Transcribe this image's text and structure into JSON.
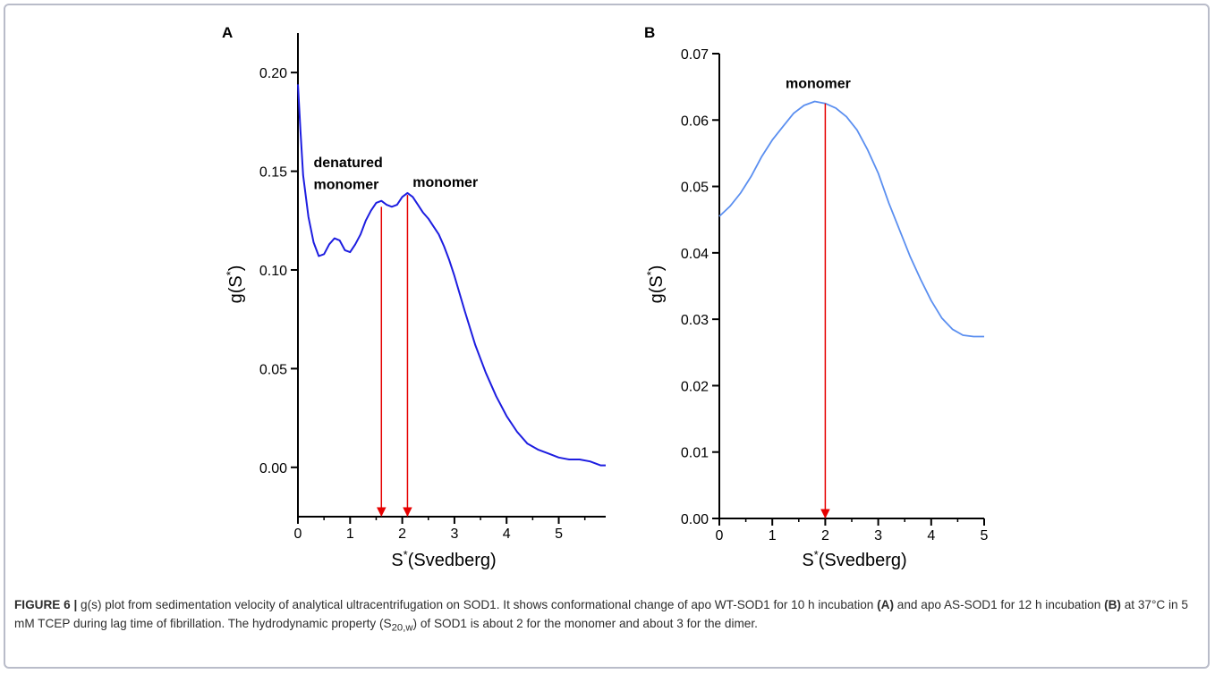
{
  "panels": {
    "a": {
      "label": "A",
      "ylabel_main": "g(S",
      "ylabel_sup": "*",
      "ylabel_close": ")",
      "xlabel_main": "S",
      "xlabel_sup": "*",
      "xlabel_rest": "(Svedberg)"
    },
    "b": {
      "label": "B",
      "ylabel_main": "g(S",
      "ylabel_sup": "*",
      "ylabel_close": ")",
      "xlabel_main": "S",
      "xlabel_sup": "*",
      "xlabel_rest": "(Svedberg)"
    }
  },
  "chart_data": [
    {
      "type": "line",
      "panel": "A",
      "xlabel": "S*(Svedberg)",
      "ylabel": "g(S*)",
      "xlim": [
        0,
        5.9
      ],
      "ylim": [
        -0.025,
        0.22
      ],
      "x_ticks": [
        "0",
        "1",
        "2",
        "3",
        "4",
        "5"
      ],
      "y_ticks": [
        "0.00",
        "0.05",
        "0.10",
        "0.15",
        "0.20"
      ],
      "line_color": "#1d1de0",
      "arrow_color": "#e60000",
      "series": [
        {
          "x": [
            0.0,
            0.05,
            0.1,
            0.2,
            0.3,
            0.4,
            0.5,
            0.6,
            0.7,
            0.8,
            0.9,
            1.0,
            1.1,
            1.2,
            1.3,
            1.4,
            1.5,
            1.6,
            1.7,
            1.8,
            1.9,
            2.0,
            2.1,
            2.2,
            2.3,
            2.4,
            2.5,
            2.6,
            2.7,
            2.8,
            2.9,
            3.0,
            3.2,
            3.4,
            3.6,
            3.8,
            4.0,
            4.2,
            4.4,
            4.6,
            4.8,
            5.0,
            5.2,
            5.4,
            5.6,
            5.8,
            5.9
          ],
          "y": [
            0.194,
            0.17,
            0.148,
            0.127,
            0.114,
            0.107,
            0.108,
            0.113,
            0.116,
            0.115,
            0.11,
            0.109,
            0.113,
            0.118,
            0.125,
            0.13,
            0.134,
            0.135,
            0.133,
            0.132,
            0.133,
            0.137,
            0.139,
            0.137,
            0.133,
            0.129,
            0.126,
            0.122,
            0.118,
            0.112,
            0.105,
            0.097,
            0.079,
            0.062,
            0.048,
            0.036,
            0.026,
            0.018,
            0.012,
            0.009,
            0.007,
            0.005,
            0.004,
            0.004,
            0.003,
            0.001,
            0.001
          ]
        }
      ],
      "annotations": [
        {
          "text": "denatured",
          "x": 0.3,
          "y": 0.152
        },
        {
          "text": "monomer",
          "x": 0.3,
          "y": 0.141
        },
        {
          "text": "monomer",
          "x": 2.2,
          "y": 0.142
        }
      ],
      "arrows": [
        {
          "x": 1.6,
          "y_from": 0.132,
          "y_to": -0.025
        },
        {
          "x": 2.1,
          "y_from": 0.138,
          "y_to": -0.025
        }
      ]
    },
    {
      "type": "line",
      "panel": "B",
      "xlabel": "S*(Svedberg)",
      "ylabel": "g(S*)",
      "xlim": [
        0,
        5
      ],
      "ylim": [
        0,
        0.07
      ],
      "x_ticks": [
        "0",
        "1",
        "2",
        "3",
        "4",
        "5"
      ],
      "y_ticks": [
        "0.00",
        "0.01",
        "0.02",
        "0.03",
        "0.04",
        "0.05",
        "0.06",
        "0.07"
      ],
      "line_color": "#5b8ff0",
      "arrow_color": "#e60000",
      "series": [
        {
          "x": [
            0.0,
            0.2,
            0.4,
            0.6,
            0.8,
            1.0,
            1.2,
            1.4,
            1.6,
            1.8,
            2.0,
            2.2,
            2.4,
            2.6,
            2.8,
            3.0,
            3.2,
            3.4,
            3.6,
            3.8,
            4.0,
            4.2,
            4.4,
            4.6,
            4.8,
            5.0
          ],
          "y": [
            0.0455,
            0.047,
            0.049,
            0.0515,
            0.0545,
            0.057,
            0.059,
            0.061,
            0.0622,
            0.0628,
            0.0625,
            0.0618,
            0.0605,
            0.0585,
            0.0555,
            0.052,
            0.0475,
            0.0435,
            0.0395,
            0.036,
            0.0328,
            0.0302,
            0.0285,
            0.0276,
            0.0274,
            0.0274
          ]
        }
      ],
      "annotations": [
        {
          "text": "monomer",
          "x": 1.25,
          "y": 0.0648
        }
      ],
      "arrows": [
        {
          "x": 2.0,
          "y_from": 0.0625,
          "y_to": 0.0
        }
      ]
    }
  ],
  "caption": {
    "figure_label": "FIGURE 6 |",
    "part1": " g(s) plot from sedimentation velocity of analytical ultracentrifugation on SOD1. It shows conformational change of apo WT-SOD1 for 10 h incubation ",
    "label_a": "(A)",
    "part2": " and apo AS-SOD1 for 12 h incubation ",
    "label_b": "(B)",
    "part3": " at 37°C in 5 mM TCEP during lag time of fibrillation. The hydrodynamic property (S",
    "sub": "20,w",
    "part4": ") of SOD1 is about 2 for the monomer and about 3 for the dimer."
  }
}
